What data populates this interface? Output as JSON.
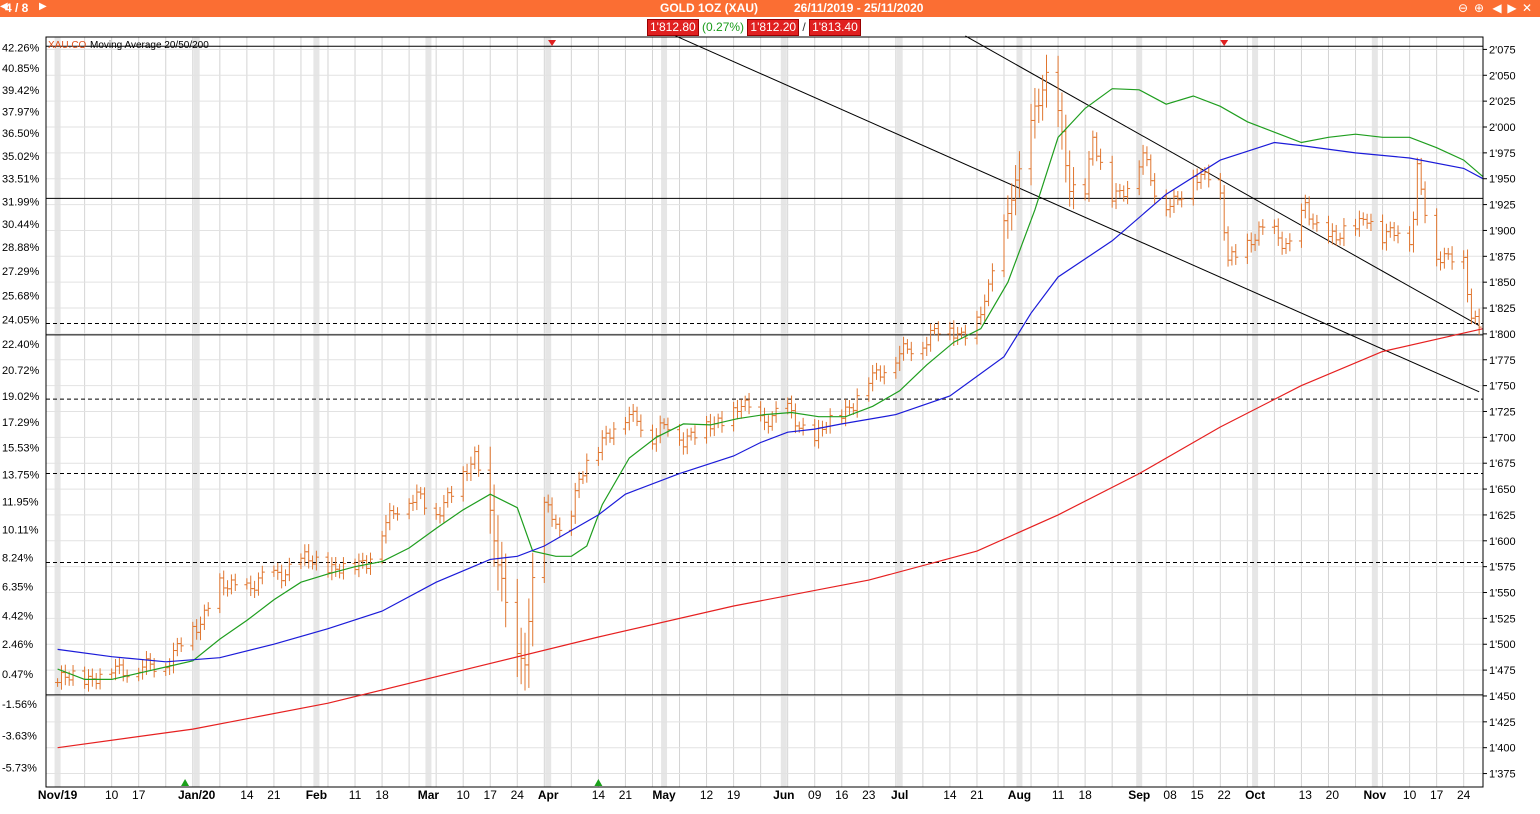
{
  "header": {
    "page_counter": "4 / 8",
    "title": "GOLD 1OZ (XAU)",
    "date_range": "26/11/2019 - 25/11/2020",
    "colors": {
      "bar": "#fb6e33",
      "text": "#ffffff"
    },
    "icons": [
      "page-prev-icon",
      "page-next-icon",
      "zoom-out-icon",
      "zoom-in-icon",
      "scroll-left-icon",
      "scroll-right-icon",
      "close-icon"
    ]
  },
  "quote": {
    "last": "1'812.80",
    "change_pct": "(0.27%)",
    "bid": "1'812.20",
    "separator": "/",
    "ask": "1'813.40"
  },
  "chart_data": {
    "type": "ohlc",
    "legend": {
      "symbol": "XAU.CO",
      "indicator": "Moving Average 20/50/200"
    },
    "y_right_ticks": [
      1375,
      1400,
      1425,
      1450,
      1475,
      1500,
      1525,
      1550,
      1575,
      1600,
      1625,
      1650,
      1675,
      1700,
      1725,
      1750,
      1775,
      1800,
      1825,
      1850,
      1875,
      1900,
      1925,
      1950,
      1975,
      2000,
      2025,
      2050,
      2075
    ],
    "y_right_labels": [
      "1'375",
      "1'400",
      "1'425",
      "1'450",
      "1'475",
      "1'500",
      "1'525",
      "1'550",
      "1'575",
      "1'600",
      "1'625",
      "1'650",
      "1'675",
      "1'700",
      "1'725",
      "1'750",
      "1'775",
      "1'800",
      "1'825",
      "1'850",
      "1'875",
      "1'900",
      "1'925",
      "1'950",
      "1'975",
      "2'000",
      "2'025",
      "2'050",
      "2'075"
    ],
    "y_left_labels": [
      {
        "label": "42.26%",
        "price": 2077
      },
      {
        "label": "40.85%",
        "price": 2057
      },
      {
        "label": "39.42%",
        "price": 2036
      },
      {
        "label": "37.97%",
        "price": 2015
      },
      {
        "label": "36.50%",
        "price": 1994
      },
      {
        "label": "35.02%",
        "price": 1972
      },
      {
        "label": "33.51%",
        "price": 1950
      },
      {
        "label": "31.99%",
        "price": 1928
      },
      {
        "label": "30.44%",
        "price": 1906
      },
      {
        "label": "28.88%",
        "price": 1884
      },
      {
        "label": "27.29%",
        "price": 1861
      },
      {
        "label": "25.68%",
        "price": 1837
      },
      {
        "label": "24.05%",
        "price": 1814
      },
      {
        "label": "22.40%",
        "price": 1790
      },
      {
        "label": "20.72%",
        "price": 1765
      },
      {
        "label": "19.02%",
        "price": 1740
      },
      {
        "label": "17.29%",
        "price": 1715
      },
      {
        "label": "15.53%",
        "price": 1690
      },
      {
        "label": "13.75%",
        "price": 1664
      },
      {
        "label": "11.95%",
        "price": 1638
      },
      {
        "label": "10.11%",
        "price": 1611
      },
      {
        "label": "8.24%",
        "price": 1584
      },
      {
        "label": "6.35%",
        "price": 1556
      },
      {
        "label": "4.42%",
        "price": 1528
      },
      {
        "label": "2.46%",
        "price": 1500
      },
      {
        "label": "0.47%",
        "price": 1471
      },
      {
        "label": "-1.56%",
        "price": 1442
      },
      {
        "label": "-3.63%",
        "price": 1412
      },
      {
        "label": "-5.73%",
        "price": 1381
      }
    ],
    "ylim": [
      1362,
      2087
    ],
    "x_labels": [
      {
        "label": "Nov/19",
        "day": 0
      },
      {
        "label": "10",
        "day": 14
      },
      {
        "label": "17",
        "day": 21
      },
      {
        "label": "Jan/20",
        "day": 36
      },
      {
        "label": "14",
        "day": 49
      },
      {
        "label": "21",
        "day": 56
      },
      {
        "label": "Feb",
        "day": 67
      },
      {
        "label": "11",
        "day": 77
      },
      {
        "label": "18",
        "day": 84
      },
      {
        "label": "Mar",
        "day": 96
      },
      {
        "label": "10",
        "day": 105
      },
      {
        "label": "17",
        "day": 112
      },
      {
        "label": "24",
        "day": 119
      },
      {
        "label": "Apr",
        "day": 127
      },
      {
        "label": "14",
        "day": 140
      },
      {
        "label": "21",
        "day": 147
      },
      {
        "label": "May",
        "day": 157
      },
      {
        "label": "12",
        "day": 168
      },
      {
        "label": "19",
        "day": 175
      },
      {
        "label": "Jun",
        "day": 188
      },
      {
        "label": "09",
        "day": 196
      },
      {
        "label": "16",
        "day": 203
      },
      {
        "label": "23",
        "day": 210
      },
      {
        "label": "Jul",
        "day": 218
      },
      {
        "label": "14",
        "day": 231
      },
      {
        "label": "21",
        "day": 238
      },
      {
        "label": "Aug",
        "day": 249
      },
      {
        "label": "11",
        "day": 259
      },
      {
        "label": "18",
        "day": 266
      },
      {
        "label": "Sep",
        "day": 280
      },
      {
        "label": "08",
        "day": 288
      },
      {
        "label": "15",
        "day": 295
      },
      {
        "label": "22",
        "day": 302
      },
      {
        "label": "Oct",
        "day": 310
      },
      {
        "label": "13",
        "day": 323
      },
      {
        "label": "20",
        "day": 330
      },
      {
        "label": "Nov",
        "day": 341
      },
      {
        "label": "10",
        "day": 350
      },
      {
        "label": "17",
        "day": 357
      },
      {
        "label": "24",
        "day": 364
      }
    ],
    "x_days_range": [
      -3,
      369
    ],
    "horizontal_lines": [
      {
        "price": 2078,
        "style": "solid"
      },
      {
        "price": 1931,
        "style": "solid"
      },
      {
        "price": 1810,
        "style": "dashed"
      },
      {
        "price": 1799,
        "style": "solid"
      },
      {
        "price": 1737,
        "style": "dashed"
      },
      {
        "price": 1665,
        "style": "dashed"
      },
      {
        "price": 1579,
        "style": "dashed"
      },
      {
        "price": 1451,
        "style": "solid"
      }
    ],
    "trendlines": [
      {
        "from": [
          160,
          2088
        ],
        "to": [
          368,
          1744
        ]
      },
      {
        "from": [
          235,
          2088
        ],
        "to": [
          368,
          1808
        ]
      }
    ],
    "markers": [
      {
        "day": 128,
        "type": "sell"
      },
      {
        "day": 302,
        "type": "sell"
      },
      {
        "day": 33,
        "type": "buy"
      },
      {
        "day": 140,
        "type": "buy"
      }
    ],
    "ohlc_anchors": [
      [
        0,
        1463
      ],
      [
        5,
        1470
      ],
      [
        9,
        1467
      ],
      [
        14,
        1475
      ],
      [
        20,
        1478
      ],
      [
        23,
        1476
      ],
      [
        27,
        1480
      ],
      [
        30,
        1492
      ],
      [
        34,
        1510
      ],
      [
        37,
        1521
      ],
      [
        41,
        1560
      ],
      [
        44,
        1553
      ],
      [
        50,
        1558
      ],
      [
        56,
        1565
      ],
      [
        60,
        1575
      ],
      [
        64,
        1580
      ],
      [
        67,
        1580
      ],
      [
        72,
        1572
      ],
      [
        76,
        1575
      ],
      [
        80,
        1582
      ],
      [
        86,
        1620
      ],
      [
        90,
        1645
      ],
      [
        94,
        1640
      ],
      [
        97,
        1620
      ],
      [
        101,
        1645
      ],
      [
        105,
        1660
      ],
      [
        108,
        1680
      ],
      [
        111,
        1650
      ],
      [
        114,
        1580
      ],
      [
        118,
        1485
      ],
      [
        121,
        1490
      ],
      [
        123,
        1560
      ],
      [
        126,
        1630
      ],
      [
        129,
        1620
      ],
      [
        131,
        1595
      ],
      [
        135,
        1658
      ],
      [
        139,
        1685
      ],
      [
        142,
        1705
      ],
      [
        146,
        1715
      ],
      [
        150,
        1720
      ],
      [
        154,
        1700
      ],
      [
        158,
        1710
      ],
      [
        162,
        1700
      ],
      [
        166,
        1705
      ],
      [
        169,
        1712
      ],
      [
        173,
        1718
      ],
      [
        177,
        1730
      ],
      [
        181,
        1718
      ],
      [
        185,
        1720
      ],
      [
        189,
        1725
      ],
      [
        193,
        1710
      ],
      [
        196,
        1695
      ],
      [
        199,
        1712
      ],
      [
        203,
        1725
      ],
      [
        206,
        1732
      ],
      [
        210,
        1755
      ],
      [
        214,
        1770
      ],
      [
        218,
        1778
      ],
      [
        222,
        1788
      ],
      [
        226,
        1800
      ],
      [
        230,
        1805
      ],
      [
        234,
        1800
      ],
      [
        238,
        1810
      ],
      [
        241,
        1840
      ],
      [
        243,
        1880
      ],
      [
        247,
        1935
      ],
      [
        250,
        1960
      ],
      [
        253,
        2020
      ],
      [
        256,
        2050
      ],
      [
        259,
        2010
      ],
      [
        262,
        1940
      ],
      [
        266,
        1940
      ],
      [
        268,
        1990
      ],
      [
        272,
        1930
      ],
      [
        277,
        1945
      ],
      [
        281,
        1970
      ],
      [
        285,
        1930
      ],
      [
        290,
        1925
      ],
      [
        294,
        1955
      ],
      [
        298,
        1955
      ],
      [
        301,
        1930
      ],
      [
        303,
        1870
      ],
      [
        307,
        1885
      ],
      [
        311,
        1895
      ],
      [
        315,
        1900
      ],
      [
        319,
        1885
      ],
      [
        323,
        1920
      ],
      [
        327,
        1900
      ],
      [
        331,
        1890
      ],
      [
        335,
        1905
      ],
      [
        339,
        1915
      ],
      [
        343,
        1890
      ],
      [
        347,
        1905
      ],
      [
        349,
        1875
      ],
      [
        351,
        1910
      ],
      [
        352,
        1955
      ],
      [
        356,
        1880
      ],
      [
        360,
        1875
      ],
      [
        364,
        1870
      ],
      [
        366,
        1815
      ],
      [
        369,
        1812
      ]
    ],
    "moving_averages": [
      {
        "period": 20,
        "color": "#1f9e1f",
        "points": [
          [
            0,
            1476
          ],
          [
            7,
            1466
          ],
          [
            14,
            1466
          ],
          [
            21,
            1472
          ],
          [
            28,
            1478
          ],
          [
            35,
            1484
          ],
          [
            42,
            1505
          ],
          [
            49,
            1523
          ],
          [
            56,
            1543
          ],
          [
            63,
            1560
          ],
          [
            70,
            1568
          ],
          [
            77,
            1575
          ],
          [
            84,
            1580
          ],
          [
            91,
            1593
          ],
          [
            98,
            1612
          ],
          [
            105,
            1630
          ],
          [
            112,
            1645
          ],
          [
            119,
            1632
          ],
          [
            123,
            1590
          ],
          [
            129,
            1585
          ],
          [
            133,
            1585
          ],
          [
            137,
            1595
          ],
          [
            141,
            1635
          ],
          [
            148,
            1680
          ],
          [
            155,
            1700
          ],
          [
            162,
            1713
          ],
          [
            169,
            1712
          ],
          [
            176,
            1718
          ],
          [
            183,
            1722
          ],
          [
            190,
            1724
          ],
          [
            197,
            1720
          ],
          [
            204,
            1720
          ],
          [
            211,
            1730
          ],
          [
            218,
            1745
          ],
          [
            225,
            1770
          ],
          [
            232,
            1792
          ],
          [
            239,
            1805
          ],
          [
            246,
            1850
          ],
          [
            253,
            1920
          ],
          [
            259,
            1990
          ],
          [
            266,
            2018
          ],
          [
            273,
            2037
          ],
          [
            280,
            2036
          ],
          [
            287,
            2022
          ],
          [
            294,
            2030
          ],
          [
            301,
            2020
          ],
          [
            308,
            2005
          ],
          [
            315,
            1995
          ],
          [
            322,
            1985
          ],
          [
            329,
            1990
          ],
          [
            336,
            1993
          ],
          [
            343,
            1990
          ],
          [
            350,
            1990
          ],
          [
            357,
            1980
          ],
          [
            364,
            1968
          ],
          [
            369,
            1952
          ]
        ]
      },
      {
        "period": 50,
        "color": "#1b1bd9",
        "points": [
          [
            0,
            1495
          ],
          [
            14,
            1488
          ],
          [
            28,
            1483
          ],
          [
            42,
            1487
          ],
          [
            56,
            1500
          ],
          [
            70,
            1515
          ],
          [
            84,
            1532
          ],
          [
            98,
            1560
          ],
          [
            112,
            1582
          ],
          [
            119,
            1585
          ],
          [
            126,
            1595
          ],
          [
            133,
            1610
          ],
          [
            140,
            1625
          ],
          [
            147,
            1645
          ],
          [
            161,
            1665
          ],
          [
            175,
            1682
          ],
          [
            182,
            1695
          ],
          [
            189,
            1705
          ],
          [
            196,
            1708
          ],
          [
            203,
            1713
          ],
          [
            217,
            1722
          ],
          [
            231,
            1740
          ],
          [
            245,
            1778
          ],
          [
            252,
            1820
          ],
          [
            259,
            1855
          ],
          [
            273,
            1890
          ],
          [
            287,
            1935
          ],
          [
            301,
            1968
          ],
          [
            315,
            1985
          ],
          [
            322,
            1982
          ],
          [
            336,
            1975
          ],
          [
            350,
            1970
          ],
          [
            364,
            1960
          ],
          [
            369,
            1950
          ]
        ]
      },
      {
        "period": 200,
        "color": "#e62020",
        "points": [
          [
            0,
            1400
          ],
          [
            35,
            1418
          ],
          [
            70,
            1443
          ],
          [
            105,
            1475
          ],
          [
            140,
            1507
          ],
          [
            175,
            1537
          ],
          [
            210,
            1562
          ],
          [
            238,
            1590
          ],
          [
            259,
            1625
          ],
          [
            280,
            1665
          ],
          [
            301,
            1710
          ],
          [
            322,
            1750
          ],
          [
            343,
            1783
          ],
          [
            369,
            1805
          ]
        ]
      }
    ]
  }
}
